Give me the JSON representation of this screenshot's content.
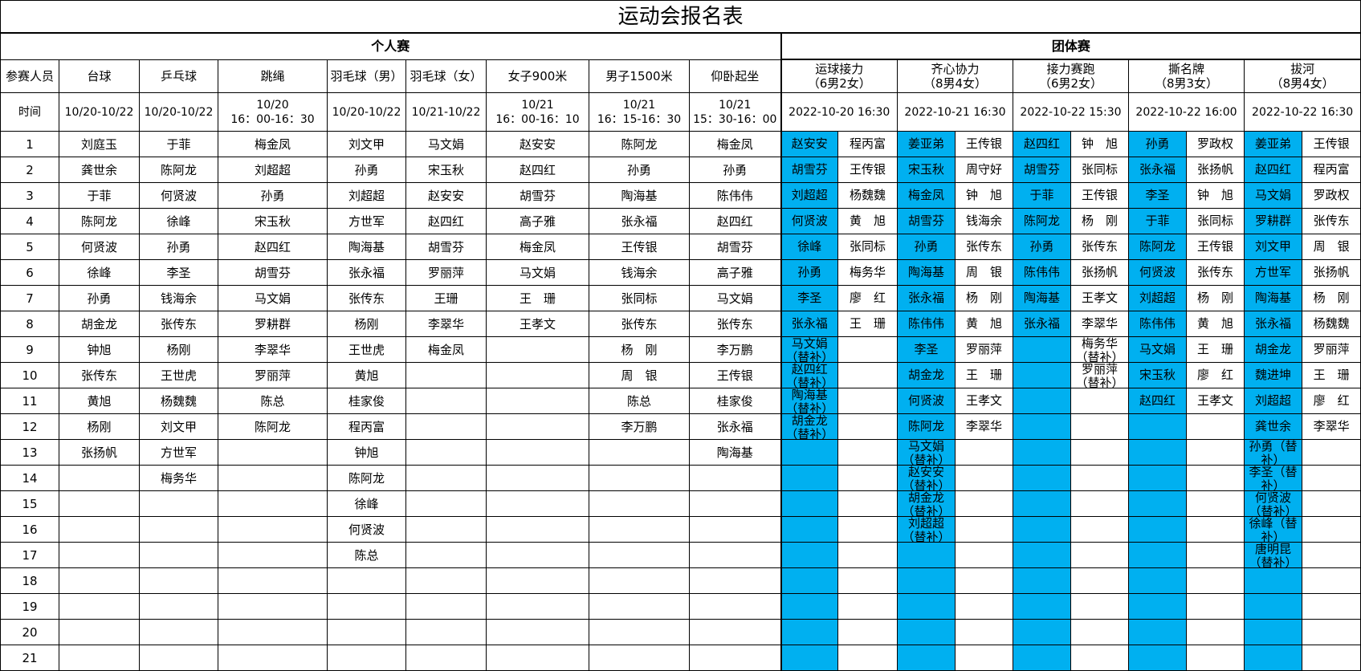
{
  "title": "运动会报名表",
  "individual": {
    "label": "个人赛",
    "participants_label": "参赛人员",
    "time_label": "时间",
    "events": [
      {
        "name": "台球",
        "time": "10/20-10/22",
        "entries": [
          "刘庭玉",
          "龚世余",
          "于菲",
          "陈阿龙",
          "何贤波",
          "徐峰",
          "孙勇",
          "胡金龙",
          "钟旭",
          "张传东",
          "黄旭",
          "杨刚",
          "张扬帆"
        ]
      },
      {
        "name": "乒乓球",
        "time": "10/20-10/22",
        "entries": [
          "于菲",
          "陈阿龙",
          "何贤波",
          "徐峰",
          "孙勇",
          "李圣",
          "钱海余",
          "张传东",
          "杨刚",
          "王世虎",
          "杨魏魏",
          "刘文甲",
          "方世军",
          "梅务华"
        ]
      },
      {
        "name": "跳绳",
        "time": "10/20\n16：00-16：30",
        "entries": [
          "梅金凤",
          "刘超超",
          "孙勇",
          "宋玉秋",
          "赵四红",
          "胡雪芬",
          "马文娟",
          "罗耕群",
          "李翠华",
          "罗丽萍",
          "陈总",
          "陈阿龙"
        ]
      },
      {
        "name": "羽毛球（男）",
        "time": "10/20-10/22",
        "entries": [
          "刘文甲",
          "孙勇",
          "刘超超",
          "方世军",
          "陶海基",
          "张永福",
          "张传东",
          "杨刚",
          "王世虎",
          "黄旭",
          "桂家俊",
          "程丙富",
          "钟旭",
          "陈阿龙",
          "徐峰",
          "何贤波",
          "陈总"
        ]
      },
      {
        "name": "羽毛球（女）",
        "time": "10/21-10/22",
        "entries": [
          "马文娟",
          "宋玉秋",
          "赵安安",
          "赵四红",
          "胡雪芬",
          "罗丽萍",
          "王珊",
          "李翠华",
          "梅金凤"
        ]
      },
      {
        "name": "女子900米",
        "time": "10/21\n16：00-16：10",
        "entries": [
          "赵安安",
          "赵四红",
          "胡雪芬",
          "高子雅",
          "梅金凤",
          "马文娟",
          "王　珊",
          "王孝文"
        ]
      },
      {
        "name": "男子1500米",
        "time": "10/21\n16：15-16：30",
        "entries": [
          "陈阿龙",
          "孙勇",
          "陶海基",
          "张永福",
          "王传银",
          "钱海余",
          "张同标",
          "张传东",
          "杨　刚",
          "周　银",
          "陈总",
          "李万鹏"
        ]
      },
      {
        "name": "仰卧起坐",
        "time": "10/21\n15：30-16：00",
        "entries": [
          "梅金凤",
          "孙勇",
          "陈伟伟",
          "赵四红",
          "胡雪芬",
          "高子雅",
          "马文娟",
          "张传东",
          "李万鹏",
          "王传银",
          "桂家俊",
          "张永福",
          "陶海基"
        ]
      }
    ]
  },
  "row_numbers": [
    "1",
    "2",
    "3",
    "4",
    "5",
    "6",
    "7",
    "8",
    "9",
    "10",
    "11",
    "12",
    "13",
    "14",
    "15",
    "16",
    "17",
    "18",
    "19",
    "20",
    "21"
  ],
  "team": {
    "label": "团体赛",
    "highlight_color": "#00B0F0",
    "events": [
      {
        "name": "运球接力",
        "quota": "（6男2女）",
        "time": "2022-10-20 16:30",
        "col_a": [
          "赵安安",
          "胡雪芬",
          "刘超超",
          "何贤波",
          "徐峰",
          "孙勇",
          "李圣",
          "张永福",
          "马文娟（替补）",
          "赵四红（替补）",
          "陶海基（替补）",
          "胡金龙（替补）"
        ],
        "col_b": [
          "程丙富",
          "王传银",
          "杨魏魏",
          "黄　旭",
          "张同标",
          "梅务华",
          "廖　红",
          "王　珊"
        ]
      },
      {
        "name": "齐心协力",
        "quota": "（8男4女）",
        "time": "2022-10-21 16:30",
        "col_a": [
          "姜亚弟",
          "宋玉秋",
          "梅金凤",
          "胡雪芬",
          "孙勇",
          "陶海基",
          "张永福",
          "陈伟伟",
          "李圣",
          "胡金龙",
          "何贤波",
          "陈阿龙",
          "马文娟（替补）",
          "赵安安（替补）",
          "胡金龙（替补）",
          "刘超超（替补）"
        ],
        "col_b": [
          "王传银",
          "周守好",
          "钟　旭",
          "钱海余",
          "张传东",
          "周　银",
          "杨　刚",
          "黄　旭",
          "罗丽萍",
          "王　珊",
          "王孝文",
          "李翠华"
        ]
      },
      {
        "name": "接力赛跑",
        "quota": "（6男2女）",
        "time": "2022-10-22 15:30",
        "col_a": [
          "赵四红",
          "胡雪芬",
          "于菲",
          "陈阿龙",
          "孙勇",
          "陈伟伟",
          "陶海基",
          "张永福"
        ],
        "col_b": [
          "钟　旭",
          "张同标",
          "王传银",
          "杨　刚",
          "张传东",
          "张扬帆",
          "王孝文",
          "李翠华",
          "梅务华（替补）",
          "罗丽萍（替补）"
        ]
      },
      {
        "name": "撕名牌",
        "quota": "（8男3女）",
        "time": "2022-10-22 16:00",
        "col_a": [
          "孙勇",
          "张永福",
          "李圣",
          "于菲",
          "陈阿龙",
          "何贤波",
          "刘超超",
          "陈伟伟",
          "马文娟",
          "宋玉秋",
          "赵四红"
        ],
        "col_b": [
          "罗政权",
          "张扬帆",
          "钟　旭",
          "张同标",
          "王传银",
          "张传东",
          "杨　刚",
          "黄　旭",
          "王　珊",
          "廖　红",
          "王孝文"
        ]
      },
      {
        "name": "拔河",
        "quota": "（8男4女）",
        "time": "2022-10-22 16:30",
        "col_a": [
          "姜亚弟",
          "赵四红",
          "马文娟",
          "罗耕群",
          "刘文甲",
          "方世军",
          "陶海基",
          "张永福",
          "胡金龙",
          "魏进坤",
          "刘超超",
          "龚世余",
          "孙勇（替补）",
          "李圣（替补）",
          "何贤波（替补）",
          "徐峰（替补）",
          "唐明昆（替补）"
        ],
        "col_b": [
          "王传银",
          "程丙富",
          "罗政权",
          "张传东",
          "周　银",
          "张扬帆",
          "杨　刚",
          "杨魏魏",
          "罗丽萍",
          "王　珊",
          "廖　红",
          "李翠华"
        ]
      }
    ]
  }
}
